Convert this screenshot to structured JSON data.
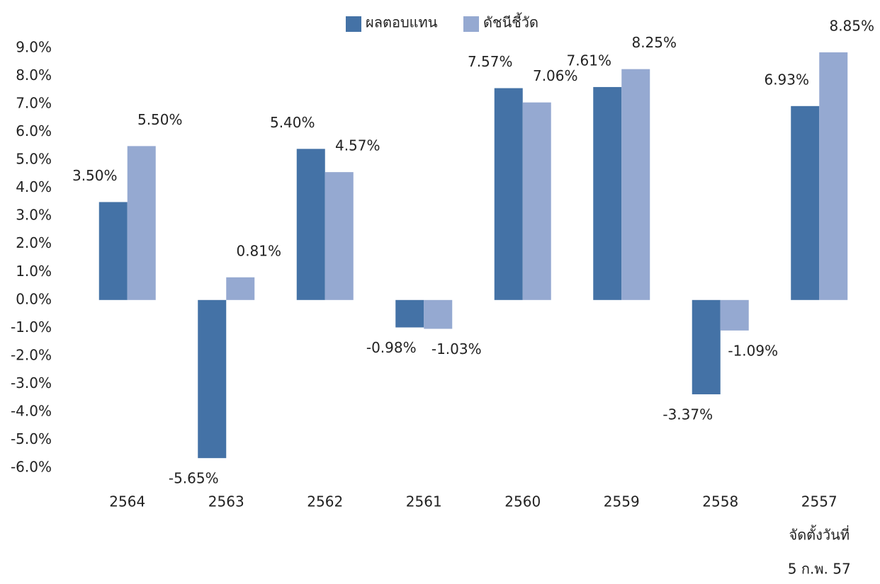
{
  "chart_data": {
    "type": "bar",
    "categories": [
      "2564",
      "2563",
      "2562",
      "2561",
      "2560",
      "2559",
      "2558",
      "2557"
    ],
    "category_note": [
      "จัดตั้งวันที่",
      "5 ก.พ. 57"
    ],
    "series": [
      {
        "name": "ผลตอบแทน",
        "color": "#4472a6",
        "values": [
          3.5,
          -5.65,
          5.4,
          -0.98,
          7.57,
          7.61,
          -3.37,
          6.93
        ],
        "value_labels": [
          "3.50%",
          "-5.65%",
          "5.40%",
          "-0.98%",
          "7.57%",
          "7.61%",
          "-3.37%",
          "6.93%"
        ]
      },
      {
        "name": "ดัชนีชี้วัด",
        "color": "#95a9d1",
        "values": [
          5.5,
          0.81,
          4.57,
          -1.03,
          7.06,
          8.25,
          -1.09,
          8.85
        ],
        "value_labels": [
          "5.50%",
          "0.81%",
          "4.57%",
          "-1.03%",
          "7.06%",
          "8.25%",
          "-1.09%",
          "8.85%"
        ]
      }
    ],
    "ylim": [
      -6,
      9
    ],
    "yticks": [
      {
        "value": 9,
        "label": "9.0%"
      },
      {
        "value": 8,
        "label": "8.0%"
      },
      {
        "value": 7,
        "label": "7.0%"
      },
      {
        "value": 6,
        "label": "6.0%"
      },
      {
        "value": 5,
        "label": "5.0%"
      },
      {
        "value": 4,
        "label": "4.0%"
      },
      {
        "value": 3,
        "label": "3.0%"
      },
      {
        "value": 2,
        "label": "2.0%"
      },
      {
        "value": 1,
        "label": "1.0%"
      },
      {
        "value": 0,
        "label": "0.0%"
      },
      {
        "value": -1,
        "label": "-1.0%"
      },
      {
        "value": -2,
        "label": "-2.0%"
      },
      {
        "value": -3,
        "label": "-3.0%"
      },
      {
        "value": -4,
        "label": "-4.0%"
      },
      {
        "value": -5,
        "label": "-5.0%"
      },
      {
        "value": -6,
        "label": "-6.0%"
      }
    ],
    "legend": "top",
    "grid": false
  }
}
